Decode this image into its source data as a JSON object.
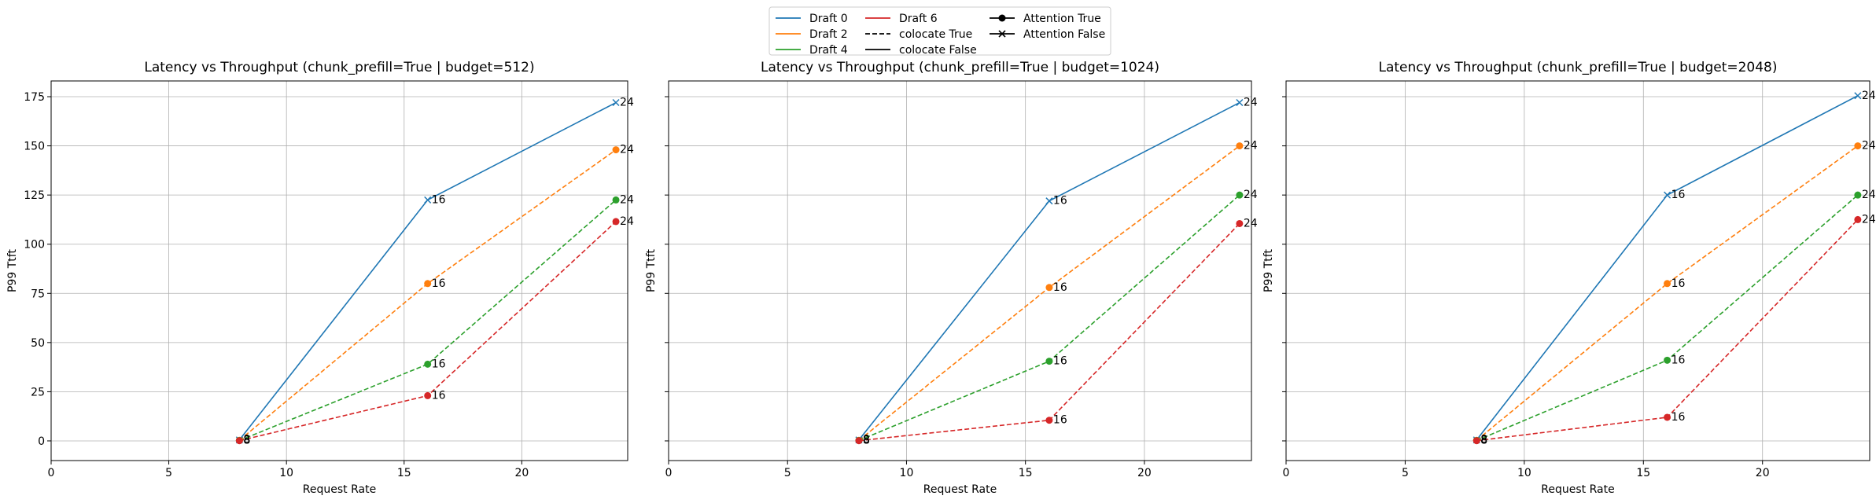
{
  "legend": {
    "placement": "top-center",
    "entries": [
      {
        "label": "Draft 0",
        "color": "#1f77b4",
        "style": "solid",
        "marker": "none"
      },
      {
        "label": "Draft 2",
        "color": "#ff7f0e",
        "style": "solid",
        "marker": "none"
      },
      {
        "label": "Draft 4",
        "color": "#2ca02c",
        "style": "solid",
        "marker": "none"
      },
      {
        "label": "Draft 6",
        "color": "#d62728",
        "style": "solid",
        "marker": "none"
      },
      {
        "label": "colocate True",
        "color": "#000000",
        "style": "dashed",
        "marker": "none"
      },
      {
        "label": "colocate False",
        "color": "#000000",
        "style": "solid",
        "marker": "none"
      },
      {
        "label": "Attention True",
        "color": "#000000",
        "style": "solid",
        "marker": "circle"
      },
      {
        "label": "Attention False",
        "color": "#000000",
        "style": "solid",
        "marker": "x"
      }
    ]
  },
  "chart_data": [
    {
      "type": "line",
      "title": "Latency vs Throughput (chunk_prefill=True | budget=512)",
      "xlabel": "Request Rate",
      "ylabel": "P99 Ttft",
      "xlim": [
        0,
        24.5
      ],
      "ylim": [
        -10,
        183
      ],
      "xticks": [
        0,
        5,
        10,
        15,
        20
      ],
      "yticks": [
        0,
        25,
        50,
        75,
        100,
        125,
        150,
        175
      ],
      "grid": true,
      "series": [
        {
          "name": "Draft 0",
          "color": "#1f77b4",
          "dashed": false,
          "marker": "x",
          "x": [
            8,
            16,
            24
          ],
          "y": [
            0.5,
            122.5,
            172
          ],
          "point_labels": [
            "8",
            "16",
            "24"
          ]
        },
        {
          "name": "Draft 2",
          "color": "#ff7f0e",
          "dashed": true,
          "marker": "circle",
          "x": [
            8,
            16,
            24
          ],
          "y": [
            0.3,
            80,
            148
          ],
          "point_labels": [
            "8",
            "16",
            "24"
          ]
        },
        {
          "name": "Draft 4",
          "color": "#2ca02c",
          "dashed": true,
          "marker": "circle",
          "x": [
            8,
            16,
            24
          ],
          "y": [
            0.2,
            39,
            122.5
          ],
          "point_labels": [
            "8",
            "16",
            "24"
          ]
        },
        {
          "name": "Draft 6",
          "color": "#d62728",
          "dashed": true,
          "marker": "circle",
          "x": [
            8,
            16,
            24
          ],
          "y": [
            0.1,
            23,
            111.5
          ],
          "point_labels": [
            "8",
            "16",
            "24"
          ]
        }
      ]
    },
    {
      "type": "line",
      "title": "Latency vs Throughput (chunk_prefill=True | budget=1024)",
      "xlabel": "Request Rate",
      "ylabel": "P99 Ttft",
      "xlim": [
        0,
        24.5
      ],
      "ylim": [
        -10,
        183
      ],
      "xticks": [
        0,
        5,
        10,
        15,
        20
      ],
      "yticks": [
        0,
        25,
        50,
        75,
        100,
        125,
        150,
        175
      ],
      "grid": true,
      "series": [
        {
          "name": "Draft 0",
          "color": "#1f77b4",
          "dashed": false,
          "marker": "x",
          "x": [
            8,
            16,
            24
          ],
          "y": [
            0.5,
            122,
            172
          ],
          "point_labels": [
            "8",
            "16",
            "24"
          ]
        },
        {
          "name": "Draft 2",
          "color": "#ff7f0e",
          "dashed": true,
          "marker": "circle",
          "x": [
            8,
            16,
            24
          ],
          "y": [
            0.3,
            78,
            150
          ],
          "point_labels": [
            "8",
            "16",
            "24"
          ]
        },
        {
          "name": "Draft 4",
          "color": "#2ca02c",
          "dashed": true,
          "marker": "circle",
          "x": [
            8,
            16,
            24
          ],
          "y": [
            0.2,
            40.5,
            125
          ],
          "point_labels": [
            "8",
            "16",
            "24"
          ]
        },
        {
          "name": "Draft 6",
          "color": "#d62728",
          "dashed": true,
          "marker": "circle",
          "x": [
            8,
            16,
            24
          ],
          "y": [
            0.1,
            10.5,
            110.5
          ],
          "point_labels": [
            "8",
            "16",
            "24"
          ]
        }
      ]
    },
    {
      "type": "line",
      "title": "Latency vs Throughput (chunk_prefill=True | budget=2048)",
      "xlabel": "Request Rate",
      "ylabel": "P99 Ttft",
      "xlim": [
        0,
        24.5
      ],
      "ylim": [
        -10,
        183
      ],
      "xticks": [
        0,
        5,
        10,
        15,
        20
      ],
      "yticks": [
        0,
        25,
        50,
        75,
        100,
        125,
        150,
        175
      ],
      "grid": true,
      "series": [
        {
          "name": "Draft 0",
          "color": "#1f77b4",
          "dashed": false,
          "marker": "x",
          "x": [
            8,
            16,
            24
          ],
          "y": [
            0.5,
            125,
            175.5
          ],
          "point_labels": [
            "8",
            "16",
            "24"
          ]
        },
        {
          "name": "Draft 2",
          "color": "#ff7f0e",
          "dashed": true,
          "marker": "circle",
          "x": [
            8,
            16,
            24
          ],
          "y": [
            0.3,
            80,
            150
          ],
          "point_labels": [
            "8",
            "16",
            "24"
          ]
        },
        {
          "name": "Draft 4",
          "color": "#2ca02c",
          "dashed": true,
          "marker": "circle",
          "x": [
            8,
            16,
            24
          ],
          "y": [
            0.2,
            41,
            125
          ],
          "point_labels": [
            "8",
            "16",
            "24"
          ]
        },
        {
          "name": "Draft 6",
          "color": "#d62728",
          "dashed": true,
          "marker": "circle",
          "x": [
            8,
            16,
            24
          ],
          "y": [
            0.1,
            12,
            112.5
          ],
          "point_labels": [
            "8",
            "16",
            "24"
          ]
        }
      ]
    }
  ]
}
